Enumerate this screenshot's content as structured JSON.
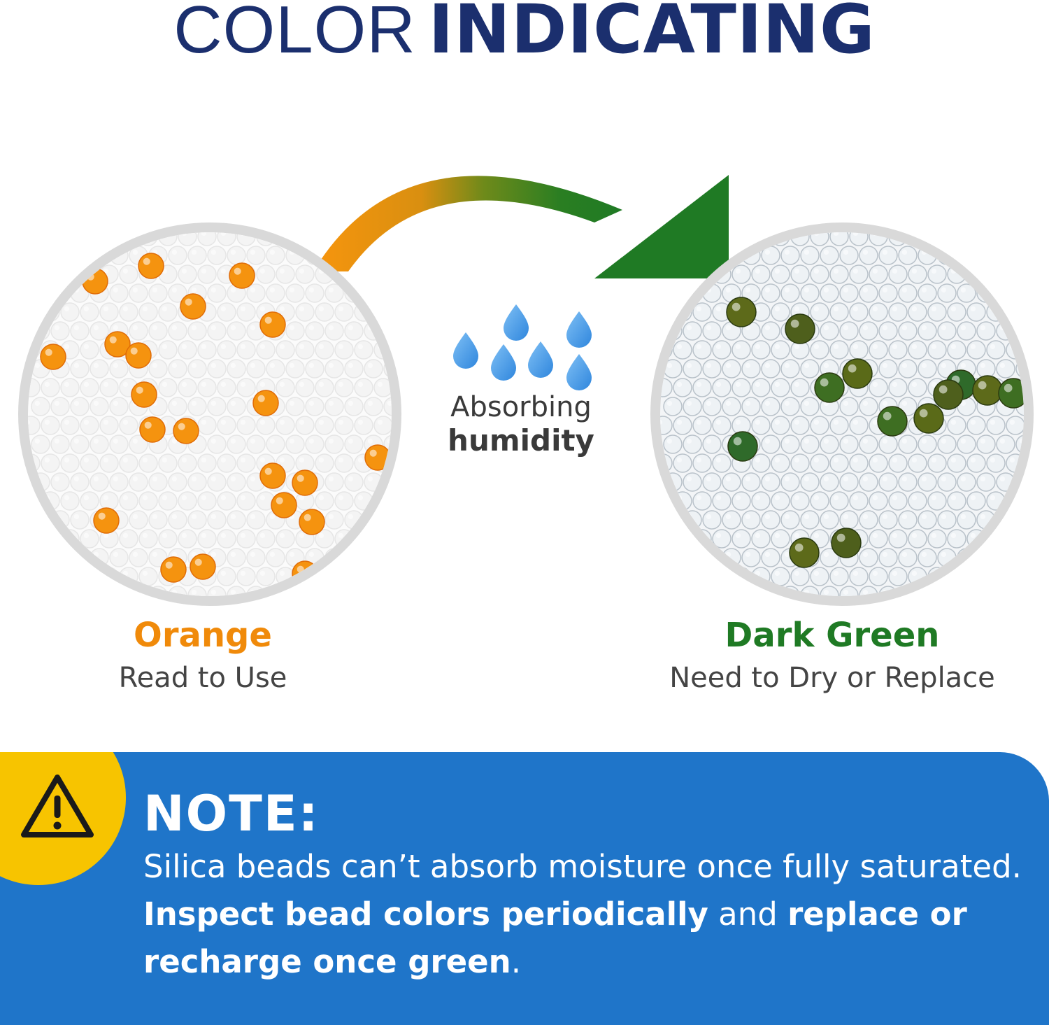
{
  "header": {
    "title_light": "COLOR",
    "title_bold": "INDICATING"
  },
  "center": {
    "line1": "Absorbing",
    "line2": "humidity"
  },
  "states": {
    "before": {
      "name": "Orange",
      "description": "Read to Use"
    },
    "after": {
      "name": "Dark Green",
      "description": "Need to Dry or Replace"
    }
  },
  "note": {
    "title": "NOTE:",
    "text_1": "Silica beads can’t absorb moisture once fully saturated. ",
    "text_2_bold": "Inspect bead colors periodically",
    "text_3": " and ",
    "text_4_bold": "replace or recharge once green",
    "text_5": "."
  },
  "colors": {
    "title_navy": "#1b2f6e",
    "orange": "#f08a0a",
    "dark_green": "#1f7a24",
    "note_blue": "#1f75c9",
    "warning_yellow": "#f7c400",
    "drop_blue": "#4a9be8"
  },
  "icons": {
    "warning": "warning-triangle-icon",
    "drops": "water-drops-icon",
    "arrow": "curved-arrow-icon"
  }
}
